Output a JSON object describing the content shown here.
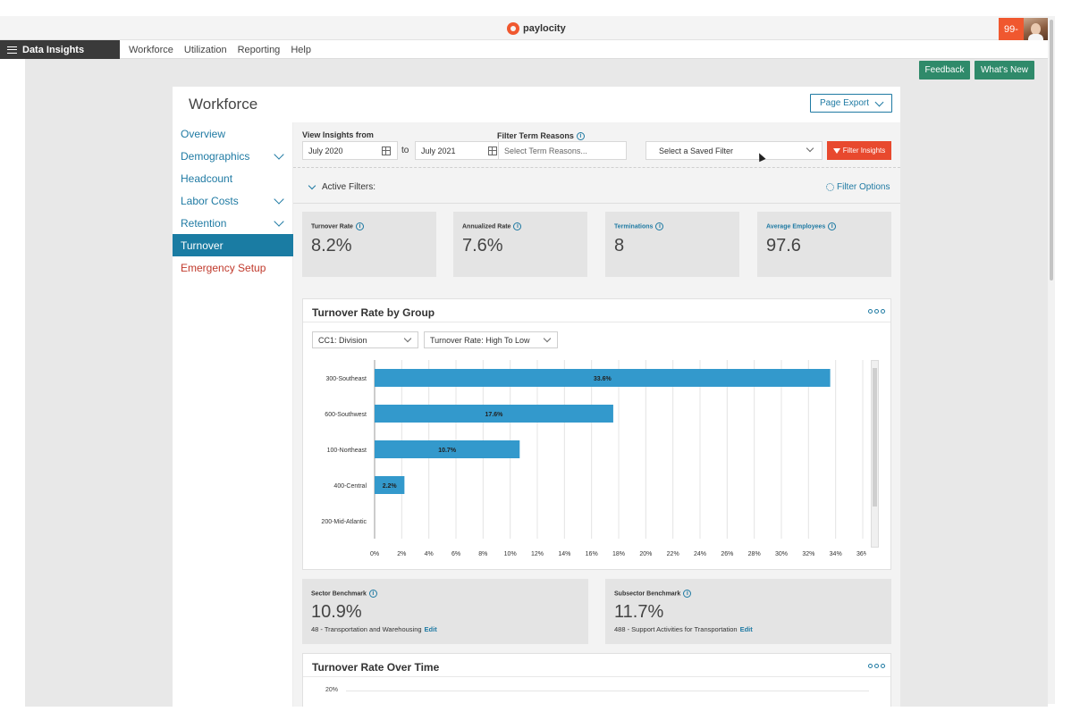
{
  "brand": {
    "name": "paylocity",
    "user_badge": "99-"
  },
  "nav": {
    "app_name": "Data Insights",
    "links": [
      "Workforce",
      "Utilization",
      "Reporting",
      "Help"
    ]
  },
  "top_buttons": {
    "feedback": "Feedback",
    "whats_new": "What's New"
  },
  "card": {
    "title": "Workforce",
    "page_export": "Page Export"
  },
  "sidebar": {
    "items": [
      {
        "label": "Overview",
        "expandable": false
      },
      {
        "label": "Demographics",
        "expandable": true
      },
      {
        "label": "Headcount",
        "expandable": false
      },
      {
        "label": "Labor Costs",
        "expandable": true
      },
      {
        "label": "Retention",
        "expandable": true
      },
      {
        "label": "Turnover",
        "active": true
      },
      {
        "label": "Emergency Setup",
        "style": "danger"
      }
    ]
  },
  "filters": {
    "view_insights_label": "View Insights from",
    "from_date": "July 2020",
    "to_label": "to",
    "to_date": "July 2021",
    "term_reasons_label": "Filter Term Reasons",
    "term_reasons_placeholder": "Select Term Reasons...",
    "saved_filter": "Select a Saved Filter",
    "filter_insights_button": "Filter Insights",
    "active_filters": "Active Filters:",
    "filter_options": "Filter Options"
  },
  "kpis": [
    {
      "label": "Turnover Rate",
      "value": "8.2%",
      "teal": false
    },
    {
      "label": "Annualized Rate",
      "value": "7.6%",
      "teal": false
    },
    {
      "label": "Terminations",
      "value": "8",
      "teal": true
    },
    {
      "label": "Average Employees",
      "value": "97.6",
      "teal": true
    }
  ],
  "turnover_by_group": {
    "title": "Turnover Rate by Group",
    "group_select": "CC1: Division",
    "sort_select": "Turnover Rate: High To Low"
  },
  "benchmarks": [
    {
      "label": "Sector Benchmark",
      "value": "10.9%",
      "subtitle": "48 - Transportation and Warehousing",
      "edit": "Edit"
    },
    {
      "label": "Subsector Benchmark",
      "value": "11.7%",
      "subtitle": "488 - Support Activities for Transportation",
      "edit": "Edit"
    }
  ],
  "over_time": {
    "title": "Turnover Rate Over Time",
    "first_tick": "20%"
  },
  "colors": {
    "accent": "#1f7aa3",
    "bar": "#3399cc",
    "danger": "#e8492e",
    "green": "#2f8a6a"
  },
  "chart_data": {
    "type": "bar",
    "orientation": "horizontal",
    "title": "Turnover Rate by Group",
    "categories": [
      "300-Southeast",
      "600-Southwest",
      "100-Northeast",
      "400-Central",
      "200-Mid-Atlantic"
    ],
    "values": [
      33.6,
      17.6,
      10.7,
      2.2,
      0
    ],
    "data_labels": [
      "33.6%",
      "17.6%",
      "10.7%",
      "2.2%",
      ""
    ],
    "xlim": [
      0,
      36
    ],
    "x_ticks": [
      "0%",
      "2%",
      "4%",
      "6%",
      "8%",
      "10%",
      "12%",
      "14%",
      "16%",
      "18%",
      "20%",
      "22%",
      "24%",
      "26%",
      "28%",
      "30%",
      "32%",
      "34%",
      "36%"
    ],
    "grid": true
  }
}
